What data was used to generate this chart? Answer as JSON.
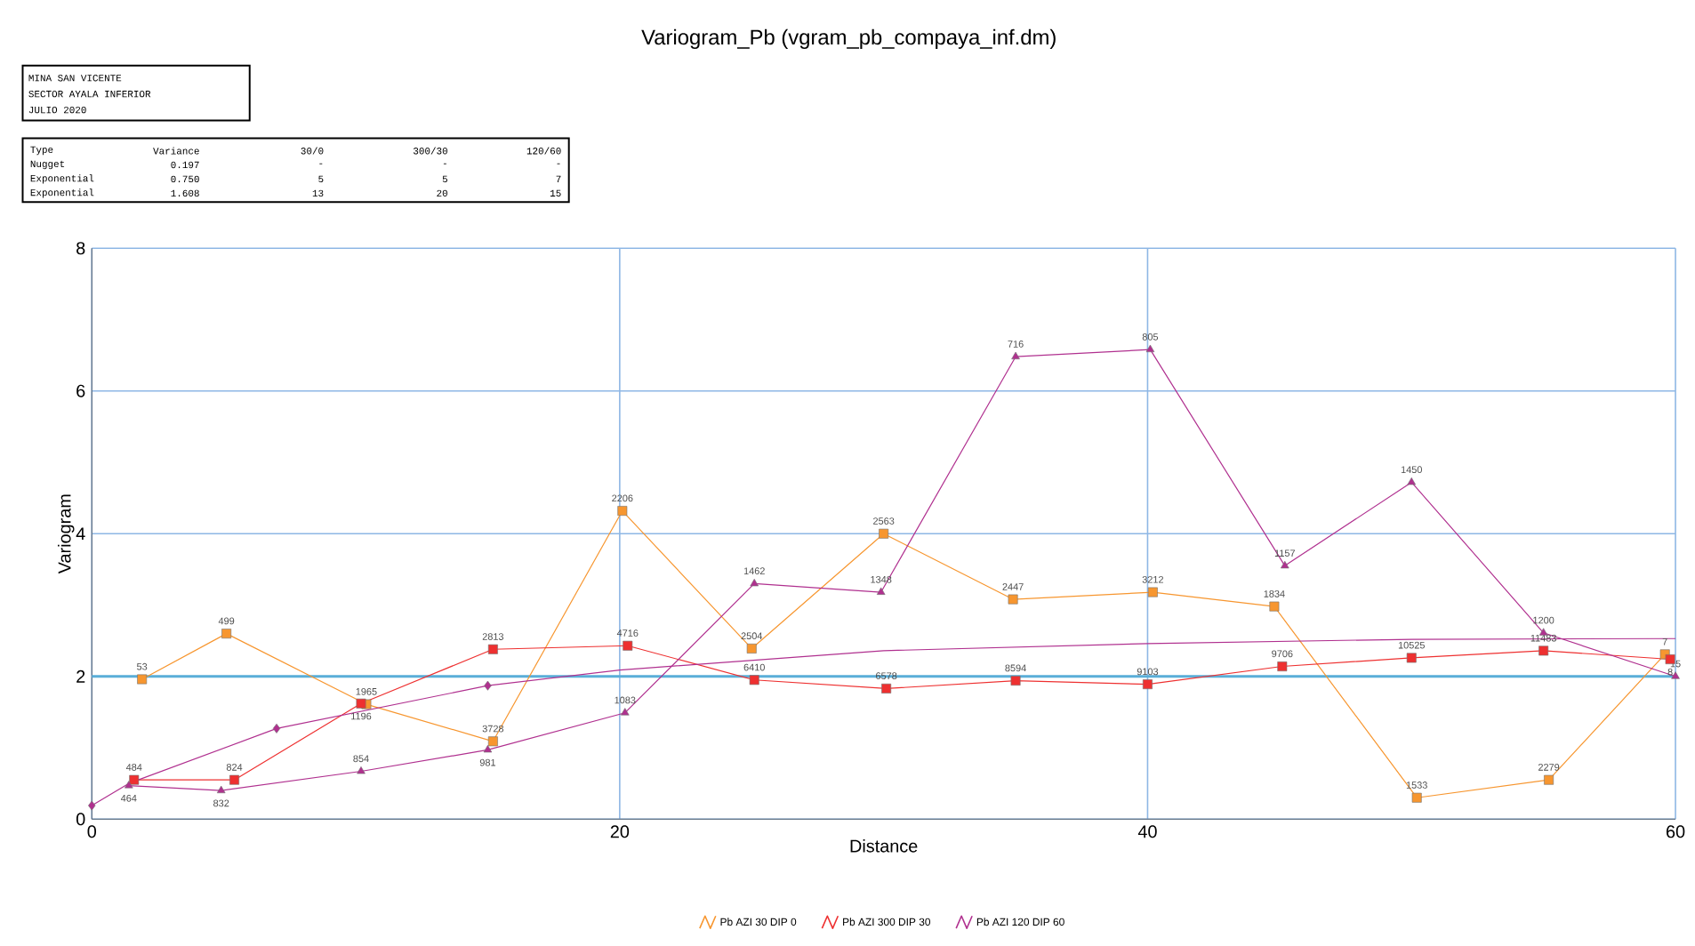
{
  "chart_data": {
    "type": "line",
    "title": "Variogram_Pb (vgram_pb_compaya_inf.dm)",
    "xlabel": "Distance",
    "ylabel": "Variogram",
    "xlim": [
      0,
      60
    ],
    "xticks": [
      0,
      20,
      40,
      60
    ],
    "ylim": [
      0,
      8
    ],
    "yticks": [
      0,
      2,
      4,
      6,
      8
    ],
    "grid": true,
    "legend": "bottom",
    "series": [
      {
        "name": "Pb AZI 30 DIP 0",
        "color": "#f7962f",
        "marker": "square",
        "x": [
          1.9,
          5.1,
          10.4,
          15.2,
          20.1,
          25.0,
          30.0,
          34.9,
          40.2,
          44.8,
          50.2,
          55.2,
          59.6
        ],
        "values": [
          1.96,
          2.6,
          1.61,
          1.09,
          4.32,
          2.39,
          4.0,
          3.08,
          3.18,
          2.98,
          0.3,
          0.55,
          2.31
        ]
      },
      {
        "name": "Pb AZI 300 DIP 30",
        "color": "#ee3030",
        "marker": "square",
        "x": [
          1.6,
          5.4,
          10.2,
          15.2,
          20.3,
          25.1,
          30.1,
          35.0,
          40.0,
          45.1,
          50.0,
          55.0,
          59.8
        ],
        "values": [
          0.55,
          0.55,
          1.62,
          2.38,
          2.43,
          1.95,
          1.83,
          1.94,
          1.89,
          2.14,
          2.26,
          2.36,
          2.24
        ]
      },
      {
        "name": "Pb AZI 120 DIP 60",
        "color": "#b0308f",
        "marker": "triangle",
        "x": [
          1.4,
          4.9,
          10.2,
          15.0,
          20.2,
          25.1,
          29.9,
          35.0,
          40.1,
          45.2,
          50.0,
          55.0,
          60.0
        ],
        "values": [
          0.47,
          0.4,
          0.67,
          0.97,
          1.49,
          3.3,
          3.18,
          6.48,
          6.58,
          3.55,
          4.72,
          2.61,
          2.0
        ]
      },
      {
        "color": "#b0308f",
        "marker": "none",
        "x": [
          0,
          1.4,
          7.0,
          15.0,
          20.0,
          30.0,
          40.0,
          50.0,
          60.0
        ],
        "values": [
          0.19,
          0.5,
          1.27,
          1.87,
          2.09,
          2.36,
          2.46,
          2.52,
          2.53
        ]
      },
      {
        "type": "scatter",
        "color": "#b0308f",
        "marker": "diamond",
        "x": [
          0,
          7.0,
          15.0
        ],
        "values": [
          0.19,
          1.27,
          1.87
        ]
      }
    ],
    "ref_lines": [
      {
        "axis": "y",
        "value": 2,
        "color": "#5aaed8"
      }
    ],
    "annotations": [
      "MINA SAN VICENTE",
      "SECTOR AYALA INFERIOR",
      "JULIO 2020",
      "Type",
      "Variance",
      "30/0",
      "300/30",
      "120/60",
      "Nugget",
      "0.197",
      "-",
      "-",
      "-",
      "Exponential",
      "0.750",
      "5",
      "5",
      "7",
      "Exponential",
      "1.608",
      "13",
      "20",
      "15",
      {
        "text": "53",
        "x": 1.9,
        "y": 1.96
      },
      {
        "text": "499",
        "x": 5.1,
        "y": 2.6
      },
      {
        "text": "1965",
        "x": 10.4,
        "y": 1.61
      },
      {
        "text": "3728",
        "x": 15.2,
        "y": 1.09
      },
      {
        "text": "2206",
        "x": 20.1,
        "y": 4.32
      },
      {
        "text": "2504",
        "x": 25.0,
        "y": 2.39
      },
      {
        "text": "2563",
        "x": 30.0,
        "y": 4.0
      },
      {
        "text": "2447",
        "x": 34.9,
        "y": 3.08
      },
      {
        "text": "3212",
        "x": 40.2,
        "y": 3.18
      },
      {
        "text": "1834",
        "x": 44.8,
        "y": 2.98
      },
      {
        "text": "1533",
        "x": 50.2,
        "y": 0.3
      },
      {
        "text": "2279",
        "x": 55.2,
        "y": 0.55
      },
      {
        "text": "7",
        "x": 59.6,
        "y": 2.31
      },
      {
        "text": "484",
        "x": 1.6,
        "y": 0.55
      },
      {
        "text": "824",
        "x": 5.4,
        "y": 0.55
      },
      {
        "text": "1196",
        "x": 10.2,
        "y": 1.62
      },
      {
        "text": "2813",
        "x": 15.2,
        "y": 2.38
      },
      {
        "text": "4716",
        "x": 20.3,
        "y": 2.43
      },
      {
        "text": "6410",
        "x": 25.1,
        "y": 1.95
      },
      {
        "text": "6578",
        "x": 30.1,
        "y": 1.83
      },
      {
        "text": "8594",
        "x": 35.0,
        "y": 1.94
      },
      {
        "text": "9103",
        "x": 40.0,
        "y": 1.89
      },
      {
        "text": "9706",
        "x": 45.1,
        "y": 2.14
      },
      {
        "text": "10525",
        "x": 50.0,
        "y": 2.26
      },
      {
        "text": "11483",
        "x": 55.0,
        "y": 2.36
      },
      {
        "text": "8",
        "x": 59.8,
        "y": 2.24
      },
      {
        "text": "464",
        "x": 1.4,
        "y": 0.47
      },
      {
        "text": "832",
        "x": 4.9,
        "y": 0.4
      },
      {
        "text": "854",
        "x": 10.2,
        "y": 0.67
      },
      {
        "text": "981",
        "x": 15.0,
        "y": 0.97
      },
      {
        "text": "1083",
        "x": 20.2,
        "y": 1.49
      },
      {
        "text": "1462",
        "x": 25.1,
        "y": 3.3
      },
      {
        "text": "1348",
        "x": 29.9,
        "y": 3.18
      },
      {
        "text": "716",
        "x": 35.0,
        "y": 6.48
      },
      {
        "text": "805",
        "x": 40.1,
        "y": 6.58
      },
      {
        "text": "1157",
        "x": 45.2,
        "y": 3.55
      },
      {
        "text": "1450",
        "x": 50.0,
        "y": 4.72
      },
      {
        "text": "1200",
        "x": 55.0,
        "y": 2.61
      },
      {
        "text": "15",
        "x": 60.0,
        "y": 2.0
      }
    ]
  }
}
